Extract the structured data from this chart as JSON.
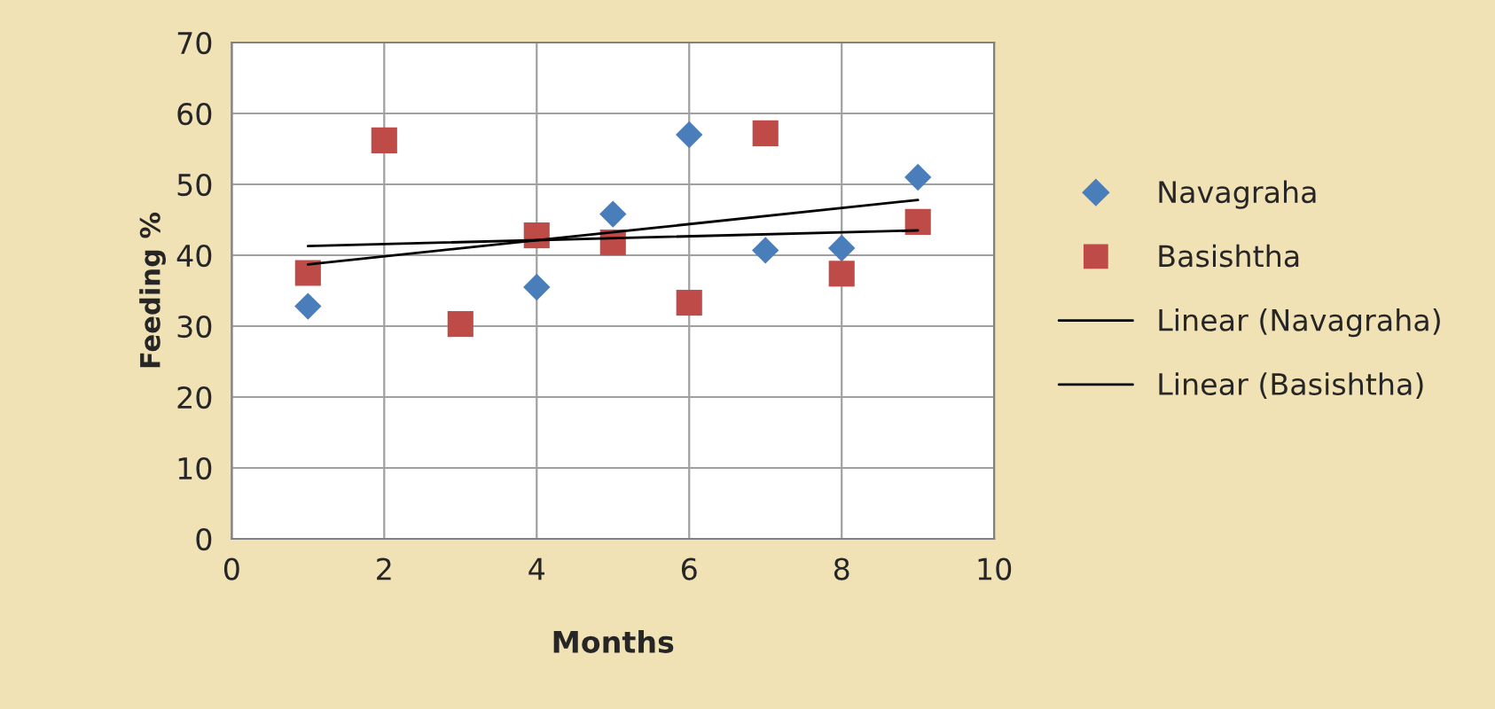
{
  "chart_data": {
    "type": "scatter",
    "xlabel": "Months",
    "ylabel": "Feeding %",
    "xlim": [
      0,
      10
    ],
    "xticks": [
      0,
      2,
      4,
      6,
      8,
      10
    ],
    "ylim": [
      0,
      70
    ],
    "yticks": [
      0,
      10,
      20,
      30,
      40,
      50,
      60,
      70
    ],
    "grid": true,
    "legend": "right",
    "series": [
      {
        "name": "Navagraha",
        "color": "#4a7ebb",
        "marker": "diamond",
        "x": [
          1,
          4,
          5,
          6,
          7,
          8,
          9
        ],
        "values": [
          32.8,
          35.5,
          45.8,
          57,
          40.7,
          41,
          51
        ]
      },
      {
        "name": "Basishtha",
        "color": "#be4b48",
        "marker": "square",
        "x": [
          1,
          2,
          3,
          4,
          5,
          6,
          7,
          8,
          9
        ],
        "values": [
          37.5,
          56.2,
          30.3,
          42.8,
          41.8,
          33.3,
          57.2,
          37.4,
          44.7
        ]
      },
      {
        "name": "Linear (Navagraha)",
        "type": "line",
        "color": "#000000",
        "marker": "none",
        "x": [
          1,
          9
        ],
        "values": [
          38.7,
          47.8
        ]
      },
      {
        "name": "Linear (Basishtha)",
        "type": "line",
        "color": "#000000",
        "marker": "none",
        "x": [
          1,
          9
        ],
        "values": [
          41.3,
          43.5
        ]
      }
    ]
  }
}
